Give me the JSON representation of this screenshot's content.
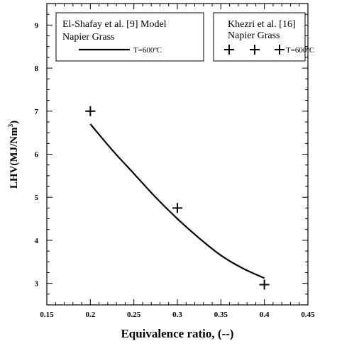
{
  "chart_data": {
    "type": "line",
    "xlabel": "Equivalence ratio, (--)",
    "ylabel": "LHV(MJ/Nm",
    "ylabel_sup": "3",
    "ylabel_end": ")",
    "xlim": [
      0.15,
      0.45
    ],
    "ylim": [
      2.5,
      9.5
    ],
    "x_ticks": [
      0.15,
      0.2,
      0.25,
      0.3,
      0.35,
      0.4,
      0.45
    ],
    "x_tick_labels": [
      "0.15",
      "0.2",
      "0.25",
      "0.3",
      "0.35",
      "0.4",
      "0.45"
    ],
    "y_ticks": [
      3,
      4,
      5,
      6,
      7,
      8,
      9
    ],
    "y_tick_labels": [
      "3",
      "4",
      "5",
      "6",
      "7",
      "8",
      "9"
    ],
    "grid": false,
    "series": [
      {
        "name": "El-Shafay et al. [9] Model Napier Grass T=600ºC",
        "kind": "line",
        "color": "#000000",
        "x": [
          0.2,
          0.225,
          0.25,
          0.275,
          0.3,
          0.325,
          0.35,
          0.375,
          0.4
        ],
        "y": [
          6.7,
          6.1,
          5.55,
          5.0,
          4.5,
          4.05,
          3.65,
          3.35,
          3.12
        ]
      },
      {
        "name": "Khezri et al. [16] Napier Grass T=600ºC",
        "kind": "scatter",
        "marker": "plus",
        "color": "#000000",
        "x": [
          0.2,
          0.3,
          0.4
        ],
        "y": [
          7.0,
          4.75,
          2.97
        ]
      }
    ],
    "legends": [
      {
        "line1": "El-Shafay et al. [9] Model",
        "line2": "Napier Grass",
        "entry": "T=600ºC"
      },
      {
        "line1": "Khezri et al. [16]",
        "line2": "Napier Grass",
        "entry": "T=600ºC"
      }
    ]
  }
}
